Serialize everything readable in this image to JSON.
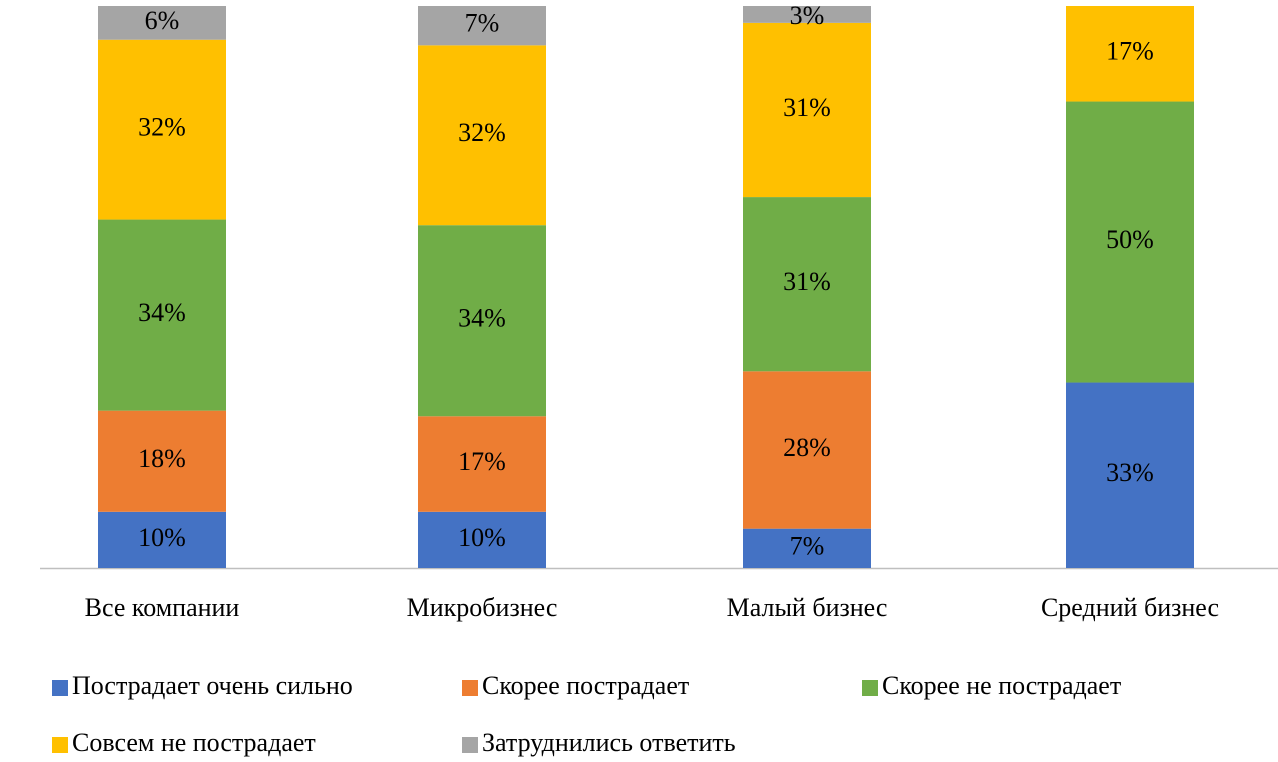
{
  "chart_data": {
    "type": "stacked_bar",
    "categories": [
      "Все компании",
      "Микробизнес",
      "Малый бизнес",
      "Средний бизнес"
    ],
    "series": [
      {
        "name": "Пострадает очень сильно",
        "color": "#4472c4",
        "values": [
          10,
          10,
          7,
          33
        ],
        "value_labels": [
          "10%",
          "10%",
          "7%",
          "33%"
        ]
      },
      {
        "name": "Скорее пострадает",
        "color": "#ed7d31",
        "values": [
          18,
          17,
          28,
          null
        ],
        "value_labels": [
          "18%",
          "17%",
          "28%",
          null
        ]
      },
      {
        "name": "Скорее не пострадает",
        "color": "#70ad47",
        "values": [
          34,
          34,
          31,
          50
        ],
        "value_labels": [
          "34%",
          "34%",
          "31%",
          "50%"
        ]
      },
      {
        "name": "Совсем не пострадает",
        "color": "#ffc000",
        "values": [
          32,
          32,
          31,
          17
        ],
        "value_labels": [
          "32%",
          "32%",
          "31%",
          "17%"
        ]
      },
      {
        "name": "Затруднились ответить",
        "color": "#a5a5a5",
        "values": [
          6,
          7,
          3,
          null
        ],
        "value_labels": [
          "6%",
          "7%",
          "3%",
          null
        ]
      }
    ]
  }
}
